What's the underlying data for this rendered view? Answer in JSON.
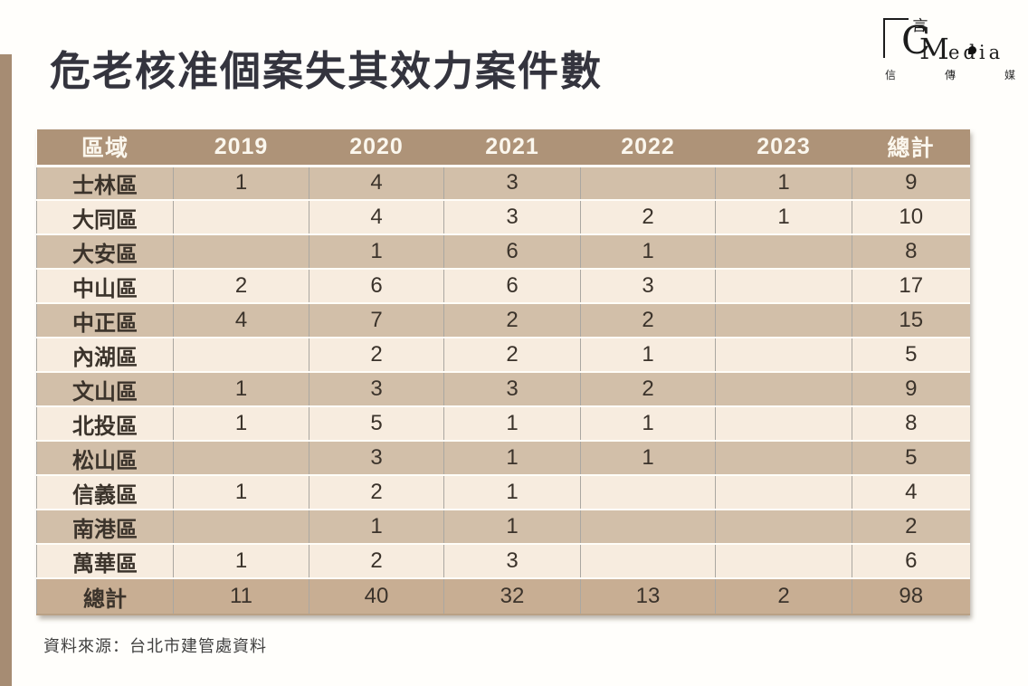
{
  "page": {
    "title": "危老核准個案失其效力案件數",
    "source_note": "資料來源：台北市建管處資料"
  },
  "logo": {
    "yan": "言",
    "c": "C",
    "m": "M",
    "edia": "edia",
    "sub_chars": [
      "信",
      "傳",
      "媒"
    ]
  },
  "chart_data": {
    "type": "table",
    "title": "危老核准個案失其效力案件數",
    "columns": [
      "區域",
      "2019",
      "2020",
      "2021",
      "2022",
      "2023",
      "總計"
    ],
    "rows": [
      [
        "士林區",
        "1",
        "4",
        "3",
        "",
        "1",
        "9"
      ],
      [
        "大同區",
        "",
        "4",
        "3",
        "2",
        "1",
        "10"
      ],
      [
        "大安區",
        "",
        "1",
        "6",
        "1",
        "",
        "8"
      ],
      [
        "中山區",
        "2",
        "6",
        "6",
        "3",
        "",
        "17"
      ],
      [
        "中正區",
        "4",
        "7",
        "2",
        "2",
        "",
        "15"
      ],
      [
        "內湖區",
        "",
        "2",
        "2",
        "1",
        "",
        "5"
      ],
      [
        "文山區",
        "1",
        "3",
        "3",
        "2",
        "",
        "9"
      ],
      [
        "北投區",
        "1",
        "5",
        "1",
        "1",
        "",
        "8"
      ],
      [
        "松山區",
        "",
        "3",
        "1",
        "1",
        "",
        "5"
      ],
      [
        "信義區",
        "1",
        "2",
        "1",
        "",
        "",
        "4"
      ],
      [
        "南港區",
        "",
        "1",
        "1",
        "",
        "",
        "2"
      ],
      [
        "萬華區",
        "1",
        "2",
        "3",
        "",
        "",
        "6"
      ]
    ],
    "total_row": [
      "總計",
      "11",
      "40",
      "32",
      "13",
      "2",
      "98"
    ]
  },
  "colors": {
    "header_bg": "#ae9378",
    "row_dark": "#d2bfa9",
    "row_light": "#f7ecdf",
    "total_bg": "#c8ae93",
    "accent_bar": "#a68c73",
    "title_text": "#34343e"
  }
}
